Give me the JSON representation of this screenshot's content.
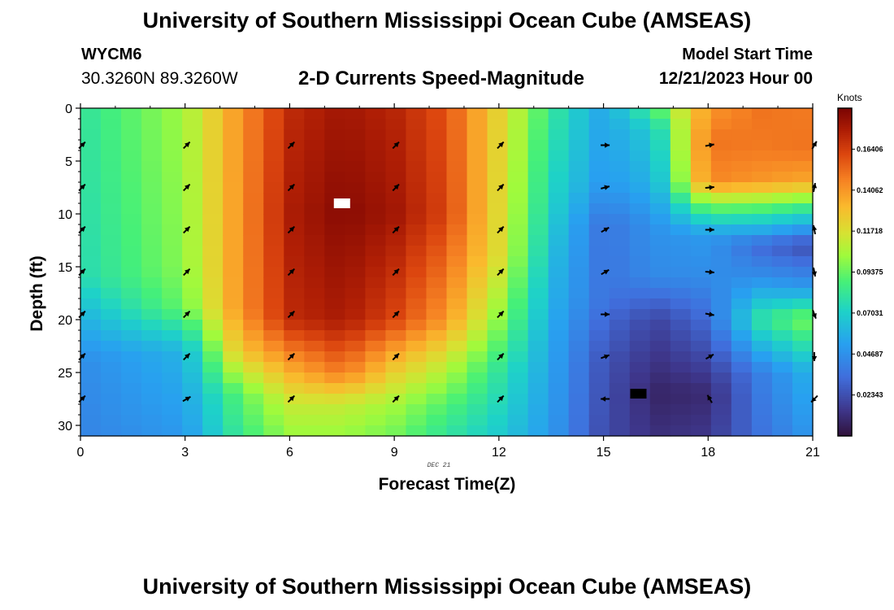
{
  "header": {
    "title": "University of Southern Mississippi Ocean Cube (AMSEAS)",
    "station": "WYCM6",
    "coords": "30.3260N  89.3260W",
    "subtitle": "2-D Currents Speed-Magnitude",
    "start_label": "Model Start Time",
    "start_time": "12/21/2023 Hour 00"
  },
  "footer": {
    "title": "University of Southern Mississippi Ocean Cube (AMSEAS)"
  },
  "chart_data": {
    "type": "heatmap",
    "title": "2-D Currents Speed-Magnitude",
    "xlabel": "Forecast Time(Z)",
    "ylabel": "Depth (ft)",
    "date_label": "DEC 21",
    "xlim": [
      0,
      21
    ],
    "ylim": [
      0,
      31
    ],
    "x_ticks": [
      0,
      3,
      6,
      9,
      12,
      15,
      18,
      21
    ],
    "y_ticks": [
      0,
      5,
      10,
      15,
      20,
      25,
      30
    ],
    "colorbar": {
      "units": "Knots",
      "min": 0.0,
      "max": 0.1875,
      "ticks": [
        "0.02343",
        "0.04687",
        "0.07031",
        "0.09375",
        "0.11718",
        "0.14062",
        "0.16406"
      ]
    },
    "grid": {
      "nx": 36,
      "ny": 31
    },
    "speed_profiles_knots": {
      "0": [
        [
          0,
          0.08
        ],
        [
          16,
          0.075
        ],
        [
          20,
          0.058
        ],
        [
          24,
          0.045
        ],
        [
          31,
          0.042
        ]
      ],
      "3": [
        [
          0,
          0.104
        ],
        [
          15,
          0.1
        ],
        [
          19,
          0.094
        ],
        [
          23,
          0.06
        ],
        [
          31,
          0.05
        ]
      ],
      "4.5": [
        [
          0,
          0.14
        ],
        [
          19,
          0.14
        ],
        [
          23,
          0.125
        ],
        [
          27,
          0.09
        ],
        [
          31,
          0.082
        ]
      ],
      "6": [
        [
          0,
          0.17
        ],
        [
          10,
          0.175
        ],
        [
          20,
          0.17
        ],
        [
          24,
          0.14
        ],
        [
          28,
          0.112
        ],
        [
          31,
          0.102
        ]
      ],
      "7.5": [
        [
          0,
          0.178
        ],
        [
          10,
          0.184
        ],
        [
          20,
          0.176
        ],
        [
          25,
          0.148
        ],
        [
          28,
          0.112
        ],
        [
          31,
          0.102
        ]
      ],
      "9": [
        [
          0,
          0.172
        ],
        [
          10,
          0.178
        ],
        [
          20,
          0.162
        ],
        [
          24,
          0.13
        ],
        [
          28,
          0.104
        ],
        [
          31,
          0.095
        ]
      ],
      "10.5": [
        [
          0,
          0.158
        ],
        [
          10,
          0.162
        ],
        [
          20,
          0.14
        ],
        [
          24,
          0.112
        ],
        [
          28,
          0.09
        ],
        [
          31,
          0.08
        ]
      ],
      "12": [
        [
          0,
          0.122
        ],
        [
          14,
          0.118
        ],
        [
          20,
          0.1
        ],
        [
          25,
          0.08
        ],
        [
          31,
          0.068
        ]
      ],
      "13.5": [
        [
          0,
          0.082
        ],
        [
          9,
          0.072
        ],
        [
          15,
          0.062
        ],
        [
          22,
          0.055
        ],
        [
          31,
          0.05
        ]
      ],
      "15": [
        [
          0,
          0.055
        ],
        [
          7,
          0.05
        ],
        [
          11,
          0.036
        ],
        [
          18,
          0.036
        ],
        [
          24,
          0.025
        ],
        [
          31,
          0.022
        ]
      ],
      "16.5": [
        [
          0,
          0.09
        ],
        [
          2,
          0.07
        ],
        [
          7,
          0.06
        ],
        [
          11,
          0.048
        ],
        [
          16,
          0.044
        ],
        [
          20,
          0.02
        ],
        [
          27,
          0.008
        ],
        [
          31,
          0.012
        ]
      ],
      "18": [
        [
          0,
          0.14
        ],
        [
          3,
          0.15
        ],
        [
          7,
          0.145
        ],
        [
          9,
          0.1
        ],
        [
          12,
          0.05
        ],
        [
          16,
          0.045
        ],
        [
          21,
          0.03
        ],
        [
          27,
          0.01
        ],
        [
          31,
          0.015
        ]
      ],
      "19.5": [
        [
          0,
          0.15
        ],
        [
          4,
          0.148
        ],
        [
          7,
          0.14
        ],
        [
          9,
          0.098
        ],
        [
          13,
          0.032
        ],
        [
          16,
          0.046
        ],
        [
          20,
          0.08
        ],
        [
          25,
          0.04
        ],
        [
          31,
          0.035
        ]
      ],
      "21": [
        [
          0,
          0.148
        ],
        [
          4,
          0.15
        ],
        [
          7,
          0.135
        ],
        [
          9,
          0.09
        ],
        [
          13,
          0.022
        ],
        [
          17,
          0.05
        ],
        [
          20,
          0.1
        ],
        [
          25,
          0.06
        ],
        [
          31,
          0.05
        ]
      ]
    },
    "markers": [
      {
        "time": 7.5,
        "depth": 9.0,
        "color": "#ffffff"
      },
      {
        "time": 16.0,
        "depth": 27.0,
        "color": "#000000"
      }
    ],
    "vector_depths_ft": [
      3.5,
      7.5,
      11.5,
      15.5,
      19.5,
      23.5,
      27.5
    ],
    "vector_times_h": [
      0,
      3,
      6,
      9,
      12,
      15,
      18,
      21
    ],
    "vector_direction_deg": [
      [
        45,
        45,
        45,
        45,
        45,
        45,
        45
      ],
      [
        45,
        45,
        45,
        45,
        45,
        45,
        60
      ],
      [
        45,
        45,
        45,
        45,
        45,
        45,
        45
      ],
      [
        45,
        45,
        45,
        45,
        45,
        45,
        45
      ],
      [
        45,
        45,
        45,
        45,
        45,
        45,
        45
      ],
      [
        90,
        75,
        60,
        60,
        90,
        70,
        270
      ],
      [
        80,
        85,
        90,
        95,
        100,
        60,
        330
      ],
      [
        30,
        10,
        350,
        170,
        160,
        180,
        225
      ]
    ]
  }
}
